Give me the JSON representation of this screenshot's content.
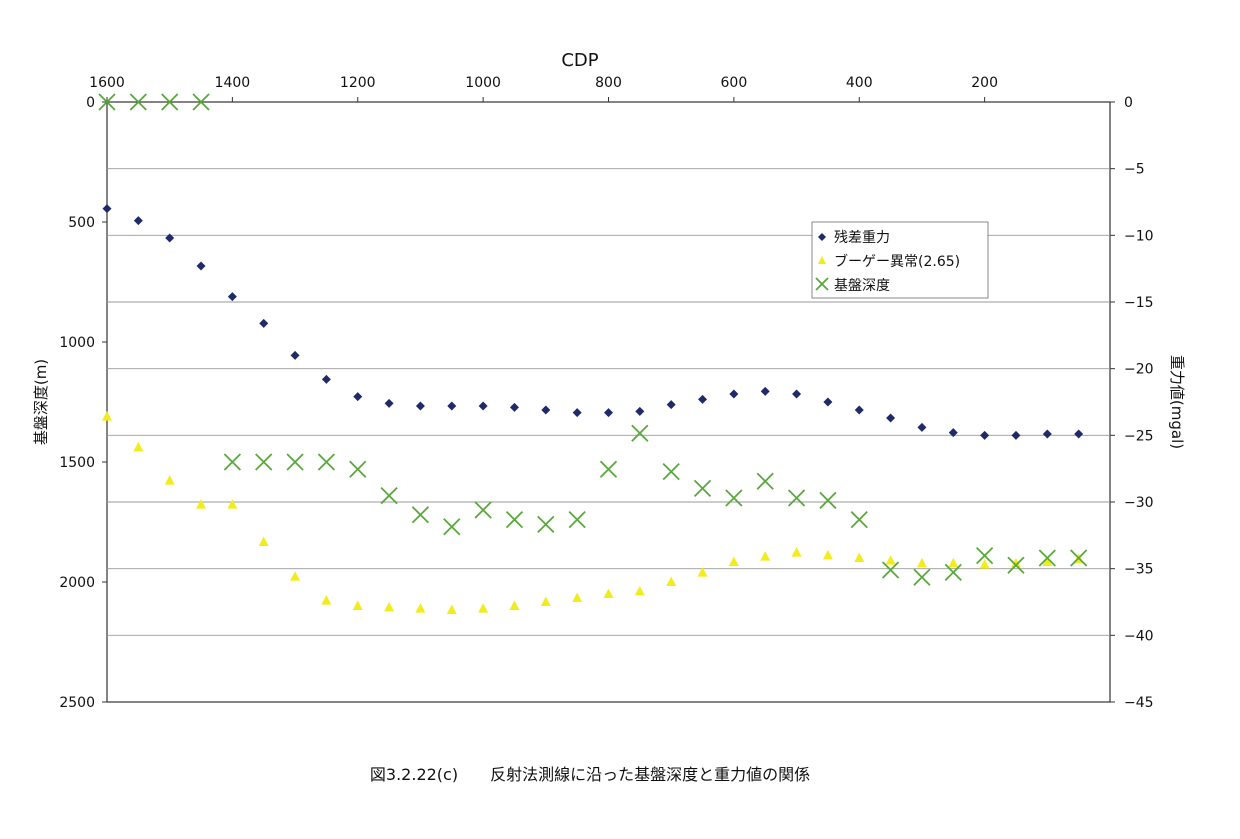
{
  "chart_data": {
    "type": "scatter",
    "top_axis": {
      "label": "CDP",
      "ticks": [
        "1600",
        "1400",
        "1200",
        "1000",
        "800",
        "600",
        "400",
        "200"
      ],
      "range": [
        1600,
        0
      ],
      "reversed": true
    },
    "left_axis": {
      "label": "基盤深度(m)",
      "ticks": [
        "0",
        "500",
        "1000",
        "1500",
        "2000",
        "2500"
      ],
      "range": [
        0,
        2500
      ],
      "inverted": true
    },
    "right_axis": {
      "label": "重力値(mgal)",
      "ticks": [
        "0",
        "−5",
        "−10",
        "−15",
        "−20",
        "−25",
        "−30",
        "−35",
        "−40",
        "−45"
      ],
      "range": [
        0,
        -45
      ]
    },
    "gridlines": "horizontal",
    "legend_position": "center-right",
    "series": [
      {
        "name": "残差重力",
        "axis": "right",
        "marker": "diamond",
        "color": "#1f2a6b",
        "x": [
          1600,
          1550,
          1500,
          1450,
          1400,
          1350,
          1300,
          1250,
          1200,
          1150,
          1100,
          1050,
          1000,
          950,
          900,
          850,
          800,
          750,
          700,
          650,
          600,
          550,
          500,
          450,
          400,
          350,
          300,
          250,
          200,
          150,
          100,
          50
        ],
        "y": [
          -8.0,
          -8.9,
          -10.2,
          -12.3,
          -14.6,
          -16.6,
          -19.0,
          -20.8,
          -22.1,
          -22.6,
          -22.8,
          -22.8,
          -22.8,
          -22.9,
          -23.1,
          -23.3,
          -23.3,
          -23.2,
          -22.7,
          -22.3,
          -21.9,
          -21.7,
          -21.9,
          -22.5,
          -23.1,
          -23.7,
          -24.4,
          -24.8,
          -25.0,
          -25.0,
          -24.9,
          -24.9
        ]
      },
      {
        "name": "ブーゲー異常(2.65)",
        "axis": "right",
        "marker": "triangle",
        "color": "#f2ec1c",
        "x": [
          1600,
          1550,
          1500,
          1450,
          1400,
          1350,
          1300,
          1250,
          1200,
          1150,
          1100,
          1050,
          1000,
          950,
          900,
          850,
          800,
          750,
          700,
          650,
          600,
          550,
          500,
          450,
          400,
          350,
          300,
          250,
          200,
          150,
          100,
          50
        ],
        "y": [
          -23.6,
          -25.9,
          -28.4,
          -30.2,
          -30.2,
          -33.0,
          -35.6,
          -37.4,
          -37.8,
          -37.9,
          -38.0,
          -38.1,
          -38.0,
          -37.8,
          -37.5,
          -37.2,
          -36.9,
          -36.7,
          -36.0,
          -35.3,
          -34.5,
          -34.1,
          -33.8,
          -34.0,
          -34.2,
          -34.4,
          -34.6,
          -34.6,
          -34.7,
          -34.6,
          -34.5,
          -34.3
        ]
      },
      {
        "name": "基盤深度",
        "axis": "left",
        "marker": "x",
        "color": "#5aa83c",
        "x": [
          1600,
          1550,
          1500,
          1450,
          1400,
          1350,
          1300,
          1250,
          1200,
          1150,
          1100,
          1050,
          1000,
          950,
          900,
          850,
          800,
          750,
          700,
          650,
          600,
          550,
          500,
          450,
          400,
          350,
          300,
          250,
          200,
          150,
          100,
          50
        ],
        "y": [
          0,
          0,
          0,
          0,
          1500,
          1500,
          1500,
          1500,
          1530,
          1640,
          1720,
          1770,
          1700,
          1740,
          1760,
          1740,
          1530,
          1380,
          1540,
          1610,
          1650,
          1580,
          1650,
          1660,
          1740,
          1950,
          1980,
          1960,
          1890,
          1930,
          1900,
          1900
        ]
      }
    ],
    "caption": "図3.2.22(c)　　反射法測線に沿った基盤深度と重力値の関係"
  }
}
